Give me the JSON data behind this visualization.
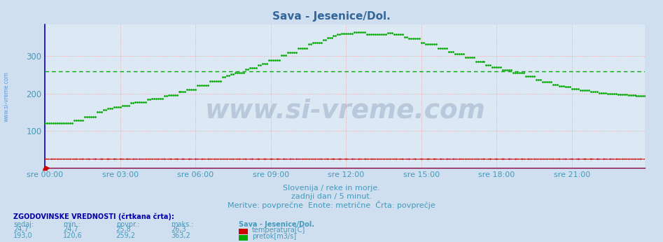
{
  "title": "Sava - Jesenice/Dol.",
  "title_color": "#336699",
  "bg_color": "#d0dff0",
  "plot_bg_color": "#dce8f4",
  "tick_color": "#4499bb",
  "left_axis_color": "#0000cc",
  "bottom_axis_color": "#880044",
  "watermark_text": "www.si-vreme.com",
  "watermark_color": "#1a3a6a",
  "watermark_alpha": 0.18,
  "subtitle1": "Slovenija / reke in morje.",
  "subtitle2": "zadnji dan / 5 minut.",
  "subtitle3": "Meritve: povprečne  Enote: metrične  Črta: povprečje",
  "subtitle_color": "#4499bb",
  "legend_title": "ZGODOVINSKE VREDNOSTI (črtkana črta):",
  "legend_headers": [
    "sedaj:",
    "min.:",
    "povpr.:",
    "maks.:"
  ],
  "legend_row1": [
    "24,7",
    "24,7",
    "25,8",
    "26,3"
  ],
  "legend_row2": [
    "193,0",
    "120,6",
    "259,2",
    "363,2"
  ],
  "legend_series_label": "Sava - Jesenice/Dol.",
  "legend_series1": "temperatura[C]",
  "legend_series2": "pretok[m3/s]",
  "legend_color1": "#cc0000",
  "legend_color2": "#00aa00",
  "left_margin_text": "www.si-vreme.com",
  "left_text_color": "#4488cc",
  "x_ticks": [
    "sre 00:00",
    "sre 03:00",
    "sre 06:00",
    "sre 09:00",
    "sre 12:00",
    "sre 15:00",
    "sre 18:00",
    "sre 21:00"
  ],
  "x_tick_positions": [
    0,
    36,
    72,
    108,
    144,
    180,
    216,
    252
  ],
  "ylim": [
    0,
    385
  ],
  "yticks": [
    100,
    200,
    300
  ],
  "n_points": 288,
  "temp_value": 24.7,
  "temp_avg": 25.8,
  "flow_avg": 259.2,
  "flow_min": 120.6,
  "flow_max": 363.2,
  "temp_color": "#cc0000",
  "flow_color": "#00aa00"
}
